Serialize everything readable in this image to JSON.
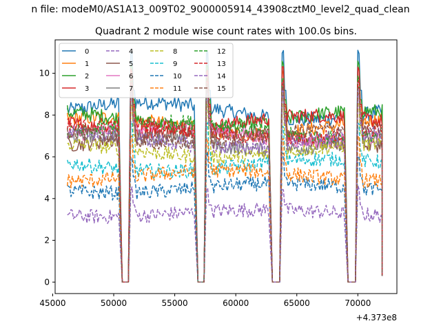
{
  "suptitle": "n file: modeM0/AS1A13_009T02_9000005914_43908cztM0_level2_quad_clean",
  "chart_data": {
    "type": "line",
    "title": "Quadrant 2 module wise count rates with 100.0s bins.",
    "xlabel": "",
    "ylabel": "",
    "x_offset_label": "+4.373e8",
    "xlim": [
      45200,
      73200
    ],
    "ylim": [
      -0.55,
      11.6
    ],
    "xticks": [
      45000,
      50000,
      55000,
      60000,
      65000,
      70000
    ],
    "xtick_labels": [
      "45000",
      "50000",
      "55000",
      "60000",
      "65000",
      "70000"
    ],
    "yticks": [
      0,
      2,
      4,
      6,
      8,
      10
    ],
    "ytick_labels": [
      "0",
      "2",
      "4",
      "6",
      "8",
      "10"
    ],
    "grid": false,
    "legend": {
      "placement": "top-left",
      "columns": 4
    },
    "bin_seconds": 100,
    "on_segments": [
      [
        46200,
        50400
      ],
      [
        51400,
        56600
      ],
      [
        57600,
        62700
      ],
      [
        63800,
        68900
      ],
      [
        70000,
        72000
      ]
    ],
    "gap_value": 0,
    "series": [
      {
        "name": "0",
        "color": "#1f77b4",
        "dash": "solid",
        "level": 8.2
      },
      {
        "name": "1",
        "color": "#ff7f0e",
        "dash": "solid",
        "level": 7.5
      },
      {
        "name": "2",
        "color": "#2ca02c",
        "dash": "solid",
        "level": 7.8
      },
      {
        "name": "3",
        "color": "#d62728",
        "dash": "solid",
        "level": 7.6
      },
      {
        "name": "4",
        "color": "#9467bd",
        "dash": "dashed",
        "level": 3.3
      },
      {
        "name": "5",
        "color": "#8c564b",
        "dash": "solid",
        "level": 6.9
      },
      {
        "name": "6",
        "color": "#e377c2",
        "dash": "solid",
        "level": 7.1
      },
      {
        "name": "7",
        "color": "#7f7f7f",
        "dash": "solid",
        "level": 6.7
      },
      {
        "name": "8",
        "color": "#bcbd22",
        "dash": "dashed",
        "level": 6.3
      },
      {
        "name": "9",
        "color": "#17becf",
        "dash": "dashed",
        "level": 5.6
      },
      {
        "name": "10",
        "color": "#1f77b4",
        "dash": "dashed",
        "level": 4.5
      },
      {
        "name": "11",
        "color": "#ff7f0e",
        "dash": "dashed",
        "level": 5.1
      },
      {
        "name": "12",
        "color": "#2ca02c",
        "dash": "dashed",
        "level": 7.3
      },
      {
        "name": "13",
        "color": "#d62728",
        "dash": "dashed",
        "level": 7.2
      },
      {
        "name": "14",
        "color": "#9467bd",
        "dash": "dashed",
        "level": 6.8
      },
      {
        "name": "15",
        "color": "#8c564b",
        "dash": "dashed",
        "level": 7.0
      }
    ]
  }
}
